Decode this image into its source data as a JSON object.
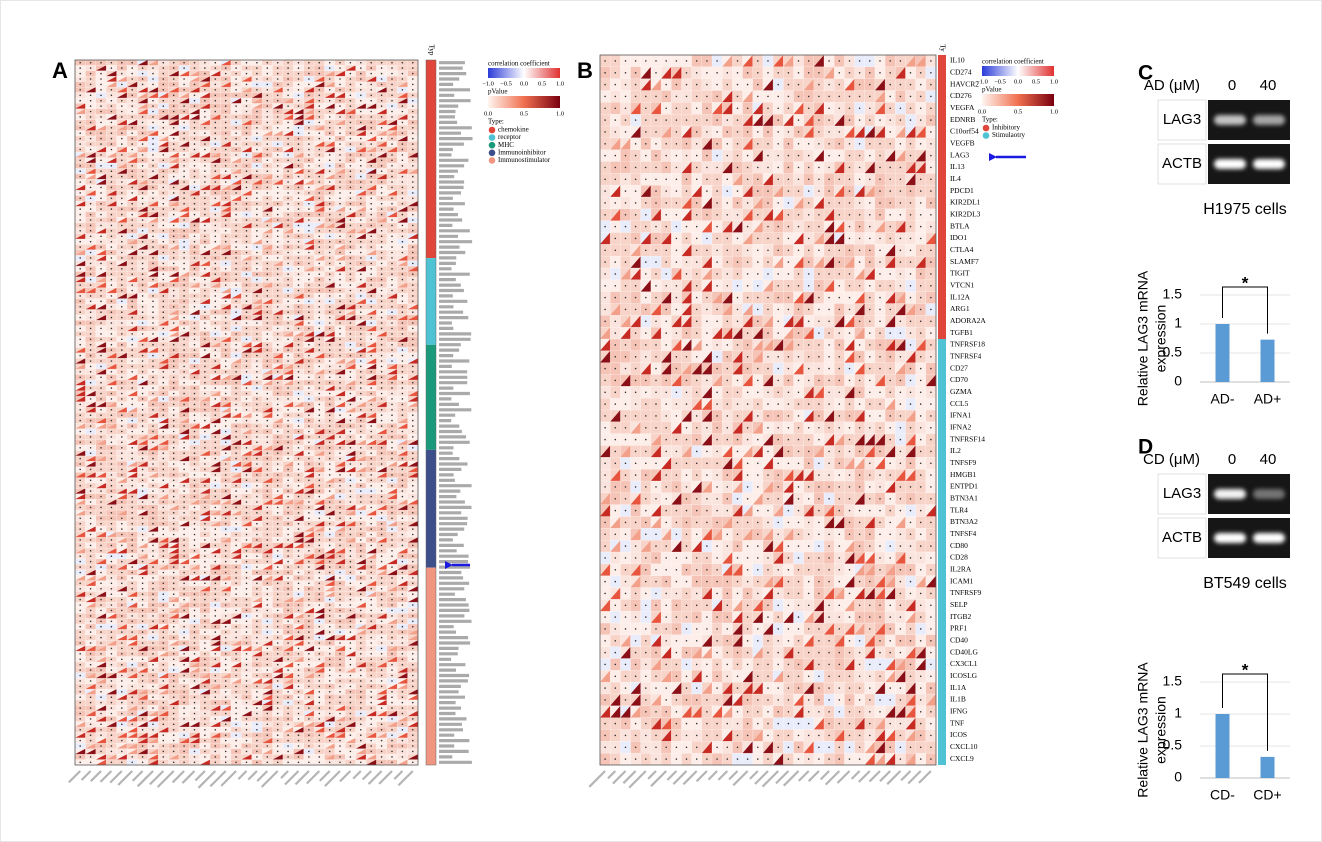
{
  "panel_a": {
    "label": "A",
    "type_header": "Typ",
    "legend": {
      "corr_title": "correlation coefficient",
      "corr_ticks": [
        "−1.0",
        "−0.5",
        "0.0",
        "0.5",
        "1.0"
      ],
      "p_title": "pValue",
      "p_ticks": [
        "0.0",
        "0.5",
        "1.0"
      ],
      "type_title": "Type:",
      "types": [
        {
          "name": "chemokine",
          "color": "#e0473a"
        },
        {
          "name": "receptor",
          "color": "#4fc3d3"
        },
        {
          "name": "MHC",
          "color": "#1a9a7a"
        },
        {
          "name": "Immunoinhibitor",
          "color": "#3d4f8a"
        },
        {
          "name": "Immunostimulator",
          "color": "#f0957f"
        }
      ]
    }
  },
  "panel_b": {
    "label": "B",
    "type_header": "Ty",
    "legend": {
      "corr_title": "correlation coefficient",
      "corr_ticks": [
        "−1.0",
        "−0.5",
        "0.0",
        "0.5",
        "1.0"
      ],
      "p_title": "pValue",
      "p_ticks": [
        "0.0",
        "0.5",
        "1.0"
      ],
      "type_title": "Type:"
    },
    "groups": [
      {
        "name": "Inhibitory",
        "color": "#e0473a",
        "genes": [
          "IL10",
          "CD274",
          "HAVCR2",
          "CD276",
          "VEGFA",
          "EDNRB",
          "C10orf54",
          "VEGFB",
          "LAG3",
          "IL13",
          "IL4",
          "PDCD1",
          "KIR2DL1",
          "KIR2DL3",
          "BTLA",
          "IDO1",
          "CTLA4",
          "SLAMF7",
          "TIGIT",
          "VTCN1",
          "IL12A",
          "ARG1",
          "ADORA2A",
          "TGFB1"
        ]
      },
      {
        "name": "Stimulaotry",
        "color": "#4fc3d3",
        "genes": [
          "TNFRSF18",
          "TNFRSF4",
          "CD27",
          "CD70",
          "GZMA",
          "CCL5",
          "IFNA1",
          "IFNA2",
          "TNFRSF14",
          "IL2",
          "TNFSF9",
          "HMGB1",
          "ENTPD1",
          "BTN3A1",
          "TLR4",
          "BTN3A2",
          "TNFSF4",
          "CD80",
          "CD28",
          "IL2RA",
          "ICAM1",
          "TNFRSF9",
          "SELP",
          "ITGB2",
          "PRF1",
          "CD40",
          "CD40LG",
          "CX3CL1",
          "ICOSLG",
          "IL1A",
          "IL1B",
          "IFNG",
          "TNF",
          "ICOS",
          "CXCL10",
          "CXCL9"
        ]
      }
    ]
  },
  "panel_c": {
    "label": "C",
    "treatment": "AD (μM)",
    "doses": [
      "0",
      "40"
    ],
    "bands": [
      "LAG3",
      "ACTB"
    ],
    "cells": "H1975 cells"
  },
  "panel_d": {
    "label": "D",
    "treatment": "CD (μM)",
    "doses": [
      "0",
      "40"
    ],
    "bands": [
      "LAG3",
      "ACTB"
    ],
    "cells": "BT549 cells"
  },
  "chart_data": [
    {
      "type": "bar",
      "y_label": [
        "Relative LAG3 mRNA",
        "expression"
      ],
      "categories": [
        "AD-",
        "AD+"
      ],
      "values": [
        1,
        0.73
      ],
      "color": "#5b9bd5",
      "ylim": [
        0,
        1.5
      ],
      "yticks": [
        0,
        0.5,
        1,
        1.5
      ],
      "grid": true,
      "significance": "*"
    },
    {
      "type": "bar",
      "y_label": [
        "Relative LAG3 mRNA",
        "expression"
      ],
      "categories": [
        "CD-",
        "CD+"
      ],
      "values": [
        1,
        0.33
      ],
      "color": "#5b9bd5",
      "ylim": [
        0,
        1.5
      ],
      "yticks": [
        0,
        0.5,
        1,
        1.5
      ],
      "grid": true,
      "significance": "*"
    }
  ]
}
